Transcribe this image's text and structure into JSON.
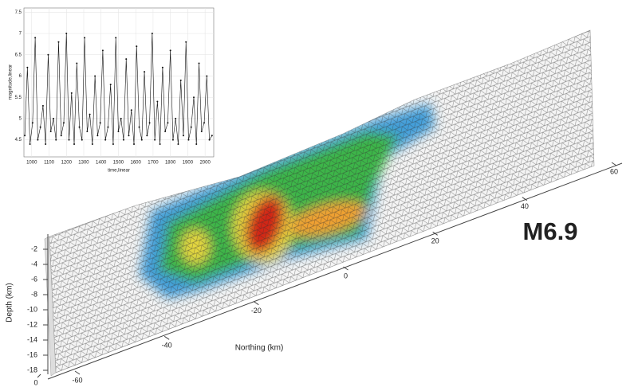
{
  "chart_data": [
    {
      "type": "line",
      "xlabel": "time,linear",
      "ylabel": "magnitude,linear",
      "color": "#111111",
      "grid": true,
      "x": [
        960,
        975,
        990,
        1005,
        1020,
        1035,
        1050,
        1065,
        1080,
        1095,
        1110,
        1125,
        1140,
        1155,
        1170,
        1185,
        1200,
        1215,
        1230,
        1245,
        1260,
        1275,
        1290,
        1305,
        1320,
        1335,
        1350,
        1365,
        1380,
        1395,
        1410,
        1425,
        1440,
        1455,
        1470,
        1485,
        1500,
        1515,
        1530,
        1545,
        1560,
        1575,
        1590,
        1605,
        1620,
        1635,
        1650,
        1665,
        1680,
        1695,
        1710,
        1725,
        1740,
        1755,
        1770,
        1785,
        1800,
        1815,
        1830,
        1845,
        1860,
        1875,
        1890,
        1905,
        1920,
        1935,
        1950,
        1965,
        1980,
        1995,
        2010,
        2025,
        2040
      ],
      "values": [
        4.6,
        6.2,
        4.4,
        4.9,
        6.9,
        4.5,
        4.8,
        5.3,
        4.4,
        6.5,
        4.7,
        5.0,
        4.5,
        6.8,
        4.6,
        4.9,
        7.0,
        4.5,
        5.6,
        4.4,
        6.3,
        4.8,
        4.5,
        6.9,
        4.7,
        5.1,
        4.4,
        6.0,
        4.6,
        4.9,
        6.6,
        4.5,
        4.8,
        5.8,
        4.4,
        6.9,
        4.7,
        5.0,
        4.5,
        6.4,
        4.6,
        5.2,
        4.4,
        6.7,
        4.8,
        4.5,
        6.1,
        4.6,
        4.9,
        7.0,
        4.5,
        5.4,
        4.4,
        6.2,
        4.7,
        4.9,
        6.6,
        4.5,
        5.0,
        4.4,
        5.9,
        4.6,
        6.8,
        4.5,
        4.8,
        5.5,
        4.4,
        6.3,
        4.7,
        4.9,
        6.0,
        4.5,
        4.6
      ],
      "xlim": [
        955,
        2050
      ],
      "xticks": [
        1000,
        1100,
        1200,
        1300,
        1400,
        1500,
        1600,
        1700,
        1800,
        1900,
        2000
      ],
      "ylim": [
        4.1,
        7.6
      ],
      "yticks": [
        4.5,
        5,
        5.5,
        6,
        6.5,
        7,
        7.5
      ]
    },
    {
      "type": "surface3d",
      "annotation": "M6.9",
      "xlabel": "Northing (km)",
      "ylabel": "Depth (km)",
      "xlim": [
        -60,
        60
      ],
      "xticks": [
        -60,
        -40,
        -20,
        0,
        20,
        40,
        60
      ],
      "ylim": [
        -18,
        0
      ],
      "yticks": [
        -2,
        -4,
        -6,
        -8,
        -10,
        -12,
        -14,
        -16,
        -18
      ],
      "zticks": [
        0
      ]
    }
  ]
}
